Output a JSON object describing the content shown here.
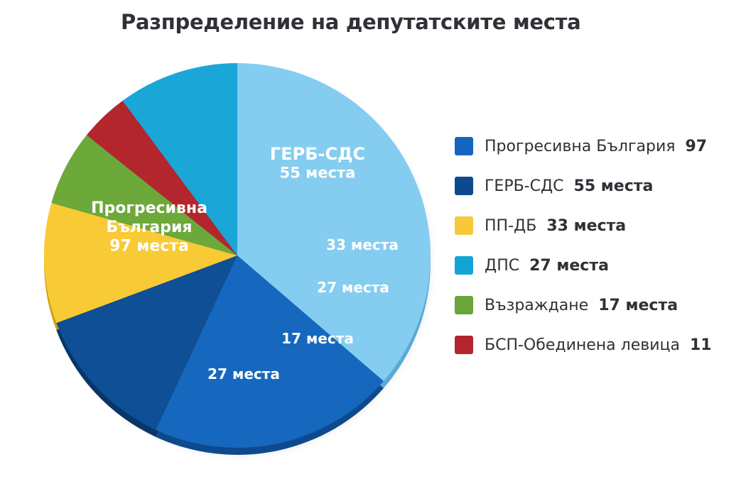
{
  "title": "Разпределение на депутатските места",
  "chart_data": {
    "type": "pie",
    "title": "Разпределение на депутатските места",
    "slices": [
      {
        "name": "Прогресивна България",
        "value": 97,
        "color": "#85cdf0",
        "side_color": "#5aa9d3",
        "label_lines": [
          "Прогресивна",
          "България",
          "97 места"
        ],
        "legend_label": "Прогресивна България",
        "legend_value": "97",
        "legend_color": "#1565c0"
      },
      {
        "name": "ГЕРБ-СДС",
        "value": 55,
        "color": "#1668be",
        "side_color": "#0d4a8d",
        "label_lines": [
          "ГЕРБ-СДС",
          "55 места"
        ],
        "legend_label": "ГЕРБ-СДС",
        "legend_value": "55 места",
        "legend_color": "#0d4a8d"
      },
      {
        "name": "ПП-ДБ",
        "value": 33,
        "color": "#0f4f95",
        "side_color": "#093666",
        "label_lines": [
          "33 места"
        ],
        "legend_label": "ПП-ДБ",
        "legend_value": "33 места",
        "legend_color": "#f7c93a"
      },
      {
        "name": "ДПС",
        "value": 27,
        "color": "#f8ca35",
        "side_color": "#cf9f14",
        "label_lines": [
          "27 места"
        ],
        "legend_label": "ДПС",
        "legend_value": "27 места",
        "legend_color": "#13a4d5"
      },
      {
        "name": "Възраждане",
        "value": 17,
        "color": "#6da83b",
        "side_color": "#4a7c25",
        "label_lines": [
          "17 места"
        ],
        "legend_label": "Възраждане",
        "legend_value": "17 места",
        "legend_color": "#6aa43a"
      },
      {
        "name": "БСП-Обединена левица",
        "value": 11,
        "color": "#b3262d",
        "side_color": "#7f1a1f",
        "label_lines": [],
        "legend_label": "БСП-Обединена левица",
        "legend_value": "11",
        "legend_color": "#b3262d"
      },
      {
        "name": "",
        "value": 27,
        "color": "#1aa7d8",
        "side_color": "#0f7ea5",
        "label_lines": [
          "27 места"
        ],
        "legend_label": "",
        "legend_value": "",
        "legend_color": ""
      }
    ],
    "legend_position": "right"
  }
}
